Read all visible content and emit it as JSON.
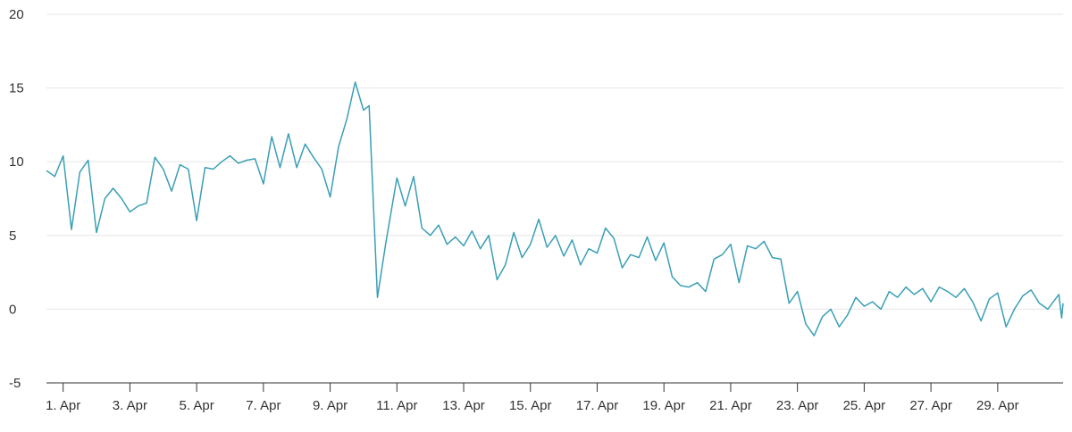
{
  "chart_data": {
    "type": "line",
    "title": "",
    "xlabel": "",
    "ylabel": "",
    "ylim": [
      -5,
      20
    ],
    "yticks": [
      -5,
      0,
      5,
      10,
      15,
      20
    ],
    "xlim": [
      "2023-03-31T12:00",
      "2023-04-30T23:00"
    ],
    "xticks": [
      {
        "date": "2023-04-01",
        "label": "1. Apr"
      },
      {
        "date": "2023-04-03",
        "label": "3. Apr"
      },
      {
        "date": "2023-04-05",
        "label": "5. Apr"
      },
      {
        "date": "2023-04-07",
        "label": "7. Apr"
      },
      {
        "date": "2023-04-09",
        "label": "9. Apr"
      },
      {
        "date": "2023-04-11",
        "label": "11. Apr"
      },
      {
        "date": "2023-04-13",
        "label": "13. Apr"
      },
      {
        "date": "2023-04-15",
        "label": "15. Apr"
      },
      {
        "date": "2023-04-17",
        "label": "17. Apr"
      },
      {
        "date": "2023-04-19",
        "label": "19. Apr"
      },
      {
        "date": "2023-04-21",
        "label": "21. Apr"
      },
      {
        "date": "2023-04-23",
        "label": "23. Apr"
      },
      {
        "date": "2023-04-25",
        "label": "25. Apr"
      },
      {
        "date": "2023-04-27",
        "label": "27. Apr"
      },
      {
        "date": "2023-04-29",
        "label": "29. Apr"
      }
    ],
    "grid": true,
    "legend": "none",
    "line_color": "#3a9fb5",
    "series": [
      {
        "values": [
          [
            "2023-03-31T12:00",
            9.4
          ],
          [
            "2023-03-31T18:00",
            9.0
          ],
          [
            "2023-04-01T00:00",
            10.4
          ],
          [
            "2023-04-01T06:00",
            5.4
          ],
          [
            "2023-04-01T12:00",
            9.3
          ],
          [
            "2023-04-01T18:00",
            10.1
          ],
          [
            "2023-04-02T00:00",
            5.2
          ],
          [
            "2023-04-02T06:00",
            7.5
          ],
          [
            "2023-04-02T12:00",
            8.2
          ],
          [
            "2023-04-02T18:00",
            7.5
          ],
          [
            "2023-04-03T00:00",
            6.6
          ],
          [
            "2023-04-03T06:00",
            7.0
          ],
          [
            "2023-04-03T12:00",
            7.2
          ],
          [
            "2023-04-03T18:00",
            10.3
          ],
          [
            "2023-04-04T00:00",
            9.5
          ],
          [
            "2023-04-04T06:00",
            8.0
          ],
          [
            "2023-04-04T12:00",
            9.8
          ],
          [
            "2023-04-04T18:00",
            9.5
          ],
          [
            "2023-04-05T00:00",
            6.0
          ],
          [
            "2023-04-05T06:00",
            9.6
          ],
          [
            "2023-04-05T12:00",
            9.5
          ],
          [
            "2023-04-05T18:00",
            10.0
          ],
          [
            "2023-04-06T00:00",
            10.4
          ],
          [
            "2023-04-06T06:00",
            9.9
          ],
          [
            "2023-04-06T12:00",
            10.1
          ],
          [
            "2023-04-06T18:00",
            10.2
          ],
          [
            "2023-04-07T00:00",
            8.5
          ],
          [
            "2023-04-07T06:00",
            11.7
          ],
          [
            "2023-04-07T12:00",
            9.6
          ],
          [
            "2023-04-07T18:00",
            11.9
          ],
          [
            "2023-04-08T00:00",
            9.6
          ],
          [
            "2023-04-08T06:00",
            11.2
          ],
          [
            "2023-04-08T12:00",
            10.3
          ],
          [
            "2023-04-08T18:00",
            9.5
          ],
          [
            "2023-04-09T00:00",
            7.6
          ],
          [
            "2023-04-09T06:00",
            11.0
          ],
          [
            "2023-04-09T12:00",
            12.9
          ],
          [
            "2023-04-09T18:00",
            15.4
          ],
          [
            "2023-04-10T00:00",
            13.5
          ],
          [
            "2023-04-10T04:00",
            13.8
          ],
          [
            "2023-04-10T10:00",
            0.8
          ],
          [
            "2023-04-10T16:00",
            4.5
          ],
          [
            "2023-04-11T00:00",
            8.9
          ],
          [
            "2023-04-11T06:00",
            7.0
          ],
          [
            "2023-04-11T12:00",
            9.0
          ],
          [
            "2023-04-11T18:00",
            5.5
          ],
          [
            "2023-04-12T00:00",
            5.0
          ],
          [
            "2023-04-12T06:00",
            5.7
          ],
          [
            "2023-04-12T12:00",
            4.4
          ],
          [
            "2023-04-12T18:00",
            4.9
          ],
          [
            "2023-04-13T00:00",
            4.3
          ],
          [
            "2023-04-13T06:00",
            5.3
          ],
          [
            "2023-04-13T12:00",
            4.1
          ],
          [
            "2023-04-13T18:00",
            5.0
          ],
          [
            "2023-04-14T00:00",
            2.0
          ],
          [
            "2023-04-14T06:00",
            3.0
          ],
          [
            "2023-04-14T12:00",
            5.2
          ],
          [
            "2023-04-14T18:00",
            3.5
          ],
          [
            "2023-04-15T00:00",
            4.4
          ],
          [
            "2023-04-15T06:00",
            6.1
          ],
          [
            "2023-04-15T12:00",
            4.2
          ],
          [
            "2023-04-15T18:00",
            5.0
          ],
          [
            "2023-04-16T00:00",
            3.6
          ],
          [
            "2023-04-16T06:00",
            4.7
          ],
          [
            "2023-04-16T12:00",
            3.0
          ],
          [
            "2023-04-16T18:00",
            4.1
          ],
          [
            "2023-04-17T00:00",
            3.8
          ],
          [
            "2023-04-17T06:00",
            5.5
          ],
          [
            "2023-04-17T12:00",
            4.8
          ],
          [
            "2023-04-17T18:00",
            2.8
          ],
          [
            "2023-04-18T00:00",
            3.7
          ],
          [
            "2023-04-18T06:00",
            3.5
          ],
          [
            "2023-04-18T12:00",
            4.9
          ],
          [
            "2023-04-18T18:00",
            3.3
          ],
          [
            "2023-04-19T00:00",
            4.5
          ],
          [
            "2023-04-19T06:00",
            2.2
          ],
          [
            "2023-04-19T12:00",
            1.6
          ],
          [
            "2023-04-19T18:00",
            1.5
          ],
          [
            "2023-04-20T00:00",
            1.8
          ],
          [
            "2023-04-20T06:00",
            1.2
          ],
          [
            "2023-04-20T12:00",
            3.4
          ],
          [
            "2023-04-20T18:00",
            3.7
          ],
          [
            "2023-04-21T00:00",
            4.4
          ],
          [
            "2023-04-21T06:00",
            1.8
          ],
          [
            "2023-04-21T12:00",
            4.3
          ],
          [
            "2023-04-21T18:00",
            4.1
          ],
          [
            "2023-04-22T00:00",
            4.6
          ],
          [
            "2023-04-22T06:00",
            3.5
          ],
          [
            "2023-04-22T12:00",
            3.4
          ],
          [
            "2023-04-22T18:00",
            0.4
          ],
          [
            "2023-04-23T00:00",
            1.2
          ],
          [
            "2023-04-23T06:00",
            -1.0
          ],
          [
            "2023-04-23T12:00",
            -1.8
          ],
          [
            "2023-04-23T18:00",
            -0.5
          ],
          [
            "2023-04-24T00:00",
            0.0
          ],
          [
            "2023-04-24T06:00",
            -1.2
          ],
          [
            "2023-04-24T12:00",
            -0.4
          ],
          [
            "2023-04-24T18:00",
            0.8
          ],
          [
            "2023-04-25T00:00",
            0.2
          ],
          [
            "2023-04-25T06:00",
            0.5
          ],
          [
            "2023-04-25T12:00",
            0.0
          ],
          [
            "2023-04-25T18:00",
            1.2
          ],
          [
            "2023-04-26T00:00",
            0.8
          ],
          [
            "2023-04-26T06:00",
            1.5
          ],
          [
            "2023-04-26T12:00",
            1.0
          ],
          [
            "2023-04-26T18:00",
            1.4
          ],
          [
            "2023-04-27T00:00",
            0.5
          ],
          [
            "2023-04-27T06:00",
            1.5
          ],
          [
            "2023-04-27T12:00",
            1.2
          ],
          [
            "2023-04-27T18:00",
            0.8
          ],
          [
            "2023-04-28T00:00",
            1.4
          ],
          [
            "2023-04-28T06:00",
            0.5
          ],
          [
            "2023-04-28T12:00",
            -0.8
          ],
          [
            "2023-04-28T18:00",
            0.7
          ],
          [
            "2023-04-29T00:00",
            1.1
          ],
          [
            "2023-04-29T06:00",
            -1.2
          ],
          [
            "2023-04-29T12:00",
            0.0
          ],
          [
            "2023-04-29T18:00",
            0.9
          ],
          [
            "2023-04-30T00:00",
            1.3
          ],
          [
            "2023-04-30T06:00",
            0.4
          ],
          [
            "2023-04-30T12:00",
            0.0
          ],
          [
            "2023-04-30T16:00",
            0.5
          ],
          [
            "2023-04-30T20:00",
            1.0
          ],
          [
            "2023-04-30T22:00",
            -0.6
          ],
          [
            "2023-04-30T23:00",
            0.4
          ]
        ]
      }
    ]
  }
}
